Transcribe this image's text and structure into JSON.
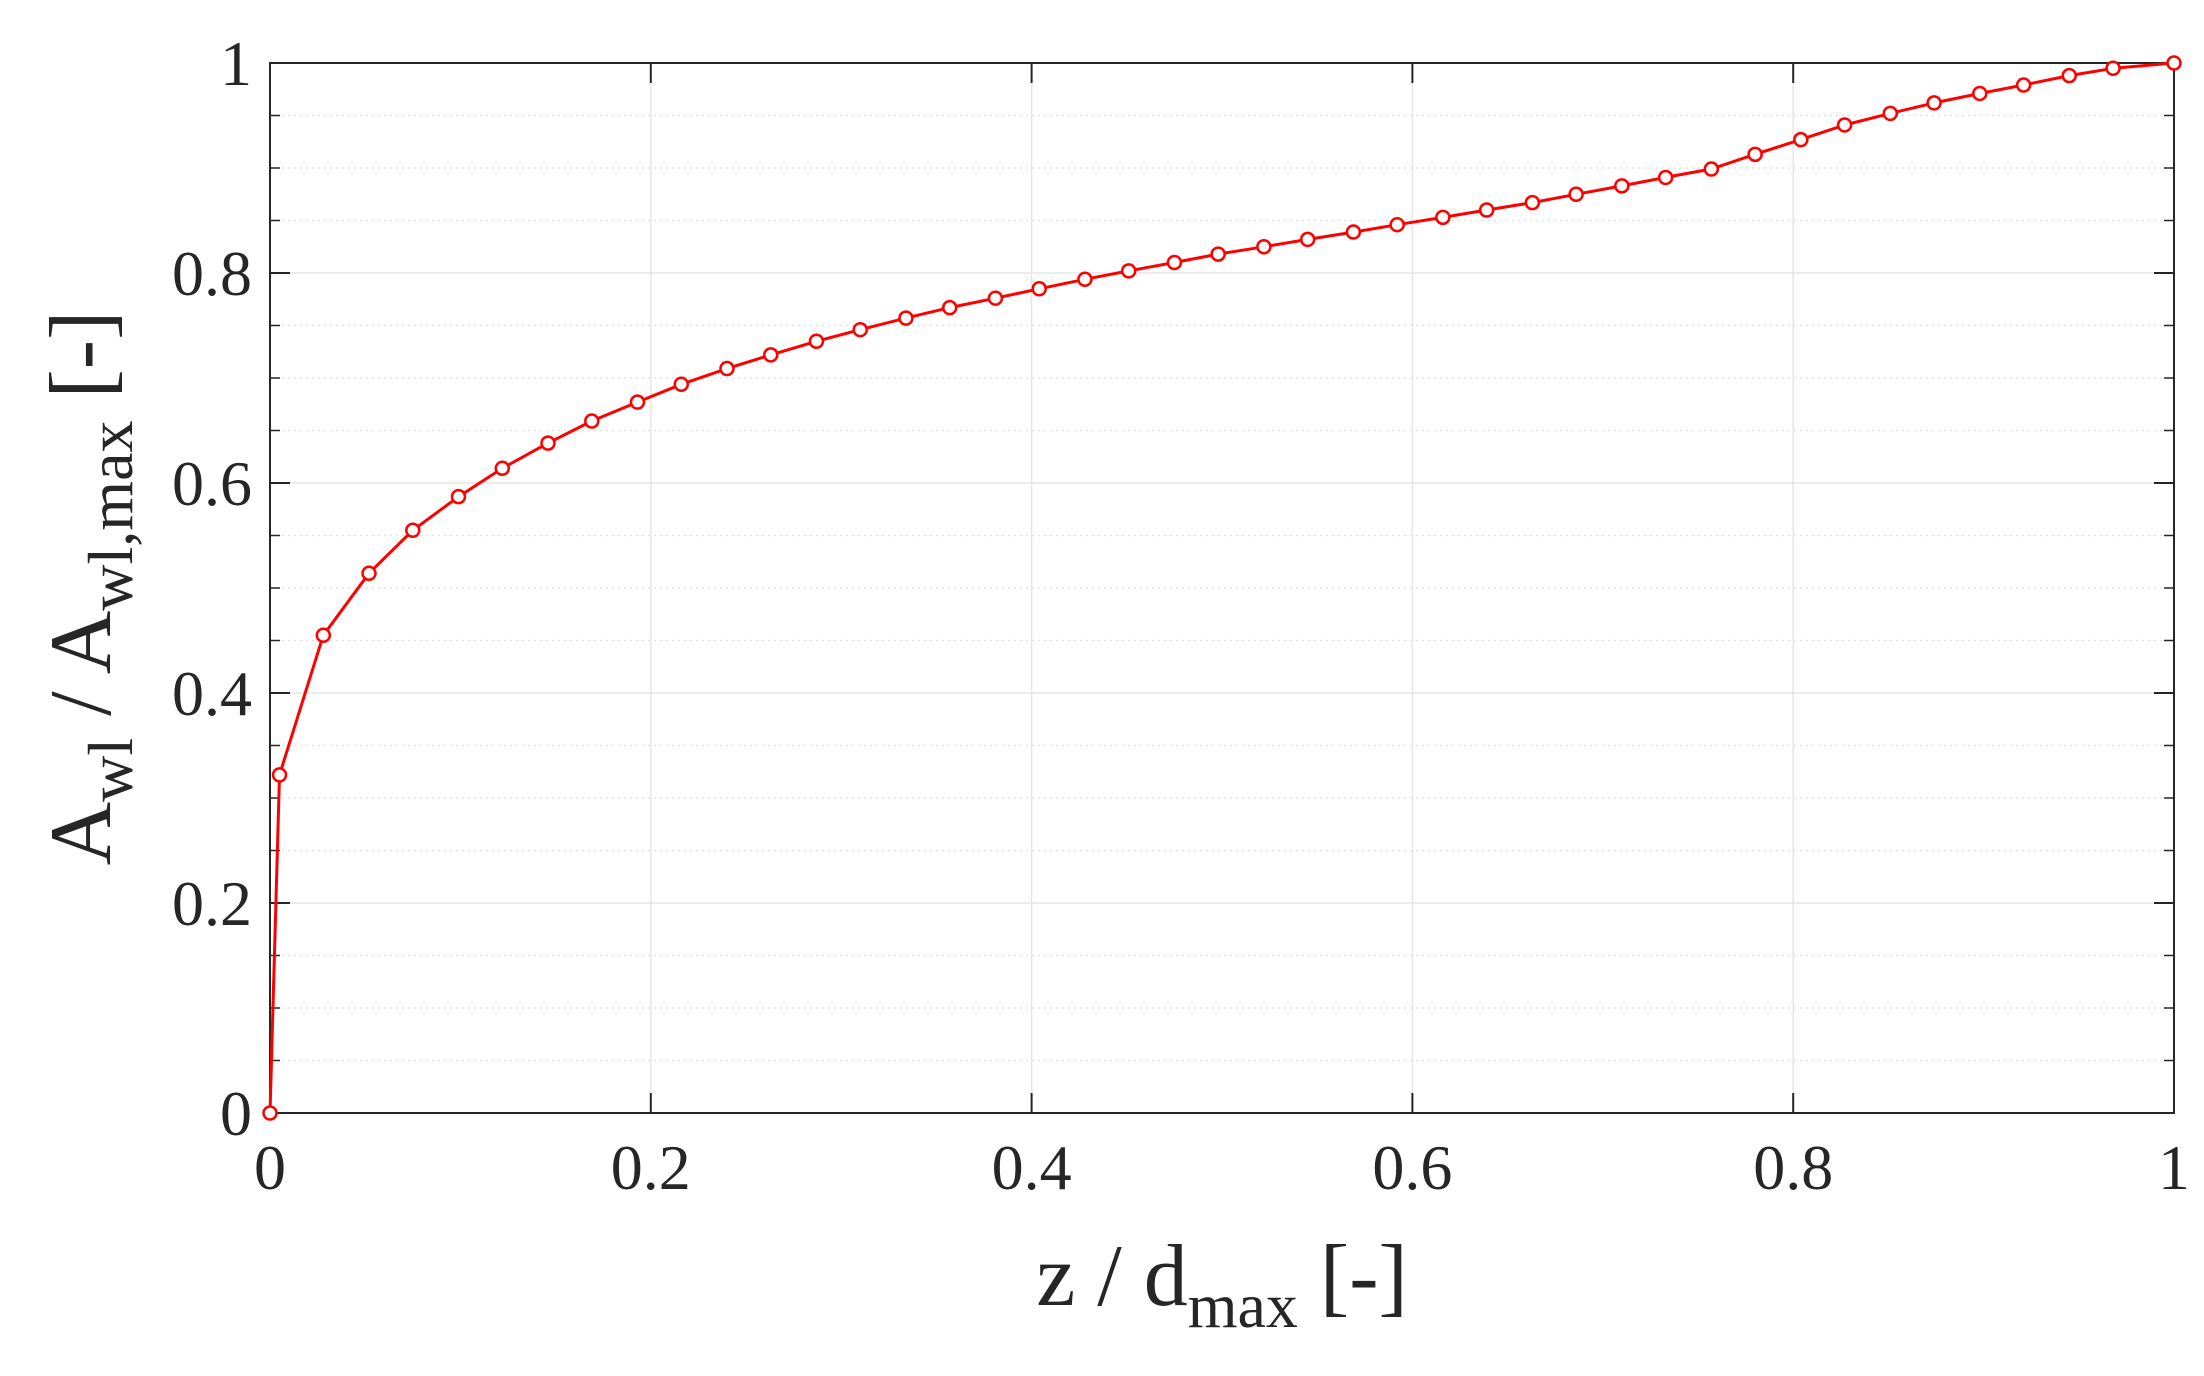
{
  "chart_data": {
    "type": "line",
    "title": "",
    "xlabel": {
      "main": "z / d",
      "sub": "max",
      "suffix": " [-]"
    },
    "ylabel": {
      "main1": "A",
      "sub1": "wl",
      "mid": " / A",
      "sub2": "wl,max",
      "suffix": " [-]"
    },
    "xlim": [
      0,
      1
    ],
    "ylim": [
      0,
      1
    ],
    "xticks": [
      0,
      0.2,
      0.4,
      0.6,
      0.8,
      1
    ],
    "xtick_labels": [
      "0",
      "0.2",
      "0.4",
      "0.6",
      "0.8",
      "1"
    ],
    "yticks": [
      0,
      0.2,
      0.4,
      0.6,
      0.8,
      1
    ],
    "ytick_labels": [
      "0",
      "0.2",
      "0.4",
      "0.6",
      "0.8",
      "1"
    ],
    "grid": true,
    "minor_grid": true,
    "series": [
      {
        "color": "#ff0000",
        "marker": "circle",
        "x": [
          0,
          0.005,
          0.028,
          0.052,
          0.075,
          0.099,
          0.122,
          0.146,
          0.169,
          0.193,
          0.216,
          0.24,
          0.263,
          0.287,
          0.31,
          0.334,
          0.357,
          0.381,
          0.404,
          0.428,
          0.451,
          0.475,
          0.498,
          0.522,
          0.545,
          0.569,
          0.592,
          0.616,
          0.639,
          0.663,
          0.686,
          0.71,
          0.733,
          0.757,
          0.78,
          0.804,
          0.827,
          0.851,
          0.874,
          0.898,
          0.921,
          0.945,
          0.968,
          1.0
        ],
        "y": [
          0,
          0.322,
          0.455,
          0.514,
          0.555,
          0.587,
          0.614,
          0.638,
          0.659,
          0.677,
          0.694,
          0.709,
          0.722,
          0.735,
          0.746,
          0.757,
          0.767,
          0.776,
          0.785,
          0.794,
          0.802,
          0.81,
          0.818,
          0.825,
          0.832,
          0.839,
          0.846,
          0.853,
          0.86,
          0.867,
          0.875,
          0.883,
          0.891,
          0.899,
          0.913,
          0.927,
          0.941,
          0.952,
          0.962,
          0.971,
          0.979,
          0.988,
          0.995,
          1.0
        ]
      }
    ]
  }
}
